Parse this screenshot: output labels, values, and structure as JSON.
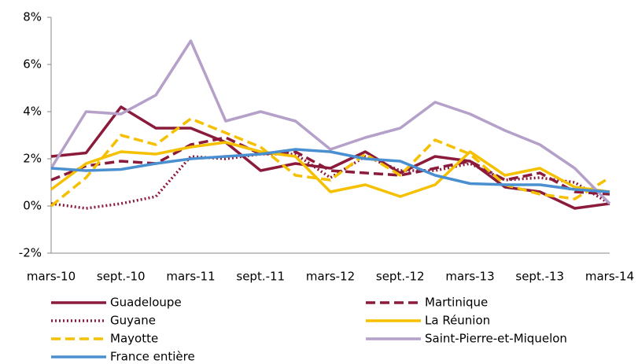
{
  "chart_data": {
    "type": "line",
    "categories": [
      "mars-10",
      null,
      "sept.-10",
      null,
      "mars-11",
      null,
      "sept.-11",
      null,
      "mars-12",
      null,
      "sept.-12",
      null,
      "mars-13",
      null,
      "sept.-13",
      null,
      "mars-14"
    ],
    "ylim": [
      -2,
      8
    ],
    "yticks": [
      {
        "value": -2,
        "label": "-2%"
      },
      {
        "value": 0,
        "label": "0%"
      },
      {
        "value": 2,
        "label": "2%"
      },
      {
        "value": 4,
        "label": "4%"
      },
      {
        "value": 6,
        "label": "6%"
      },
      {
        "value": 8,
        "label": "8%"
      }
    ],
    "grid": false,
    "legend": "bottom",
    "series": [
      {
        "name": "Guadeloupe",
        "color": "#8b1a3b",
        "dash": "solid",
        "values": [
          2.1,
          2.25,
          4.2,
          3.3,
          3.3,
          2.7,
          1.5,
          1.8,
          1.6,
          2.3,
          1.4,
          2.1,
          1.9,
          0.8,
          0.6,
          -0.1,
          0.1
        ]
      },
      {
        "name": "Martinique",
        "color": "#8b1a3b",
        "dash": "dashed",
        "values": [
          1.1,
          1.7,
          1.9,
          1.8,
          2.6,
          2.9,
          2.2,
          2.3,
          1.5,
          1.4,
          1.3,
          1.6,
          1.9,
          1.1,
          1.4,
          0.6,
          0.5
        ]
      },
      {
        "name": "Guyane",
        "color": "#8b1a3b",
        "dash": "dotted",
        "values": [
          0.1,
          -0.1,
          0.1,
          0.4,
          2.1,
          2.0,
          2.2,
          2.2,
          1.2,
          2.1,
          1.5,
          1.5,
          1.8,
          1.1,
          1.2,
          1.0,
          0.1
        ]
      },
      {
        "name": "La Réunion",
        "color": "#f5c000",
        "dash": "solid",
        "values": [
          0.7,
          1.8,
          2.3,
          2.2,
          2.5,
          2.7,
          2.3,
          2.1,
          0.6,
          0.9,
          0.4,
          0.9,
          2.3,
          1.3,
          1.6,
          0.8,
          0.6
        ]
      },
      {
        "name": "Mayotte",
        "color": "#f5c000",
        "dash": "dashed",
        "values": [
          0.0,
          1.2,
          3.0,
          2.6,
          3.7,
          3.1,
          2.5,
          1.3,
          1.1,
          2.2,
          1.3,
          2.8,
          2.2,
          0.9,
          0.5,
          0.3,
          1.2
        ]
      },
      {
        "name": "Saint-Pierre-et-Miquelon",
        "color": "#b4a0c8",
        "dash": "solid",
        "values": [
          1.6,
          4.0,
          3.9,
          4.7,
          7.0,
          3.6,
          4.0,
          3.6,
          2.4,
          2.9,
          3.3,
          4.4,
          3.9,
          3.2,
          2.6,
          1.6,
          0.1
        ]
      },
      {
        "name": "France entière",
        "color": "#4a90d0",
        "dash": "solid",
        "values": [
          1.6,
          1.5,
          1.55,
          1.8,
          2.0,
          2.1,
          2.2,
          2.4,
          2.3,
          2.0,
          1.9,
          1.3,
          0.95,
          0.9,
          0.9,
          0.7,
          0.6
        ]
      }
    ]
  }
}
